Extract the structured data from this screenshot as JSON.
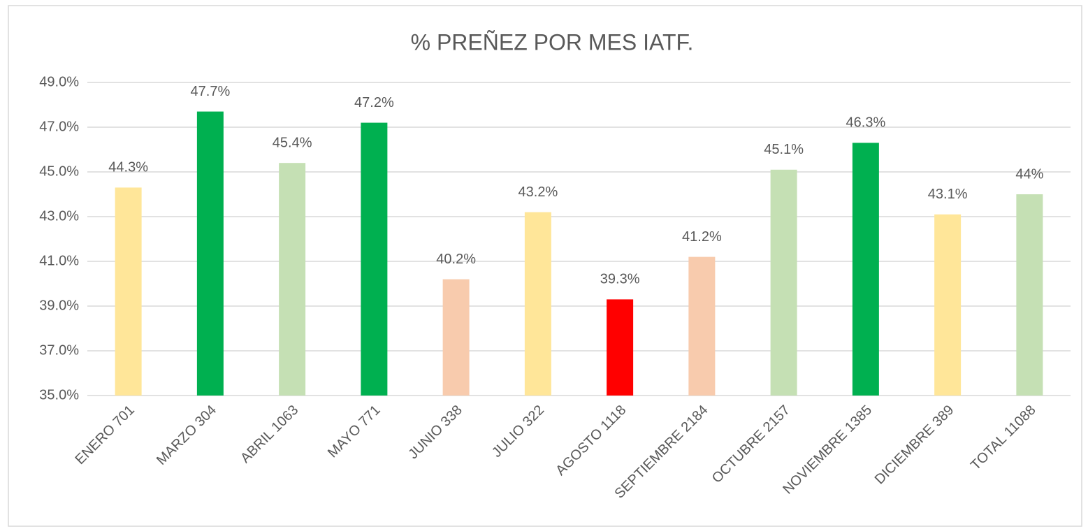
{
  "chart_data": {
    "type": "bar",
    "title": "% PREÑEZ POR MES IATF.",
    "categories": [
      "ENERO 701",
      "MARZO 304",
      "ABRIL 1063",
      "MAYO 771",
      "JUNIO 338",
      "JULIO 322",
      "AGOSTO 1118",
      "SEPTIEMBRE 2184",
      "OCTUBRE 2157",
      "NOVIEMBRE 1385",
      "DICIEMBRE 389",
      "TOTAL 11088"
    ],
    "values": [
      44.3,
      47.7,
      45.4,
      47.2,
      40.2,
      43.2,
      39.3,
      41.2,
      45.1,
      46.3,
      43.1,
      44
    ],
    "value_labels": [
      "44.3%",
      "47.7%",
      "45.4%",
      "47.2%",
      "40.2%",
      "43.2%",
      "39.3%",
      "41.2%",
      "45.1%",
      "46.3%",
      "43.1%",
      "44%"
    ],
    "colors": [
      "#FFE699",
      "#00B050",
      "#C5E0B4",
      "#00B050",
      "#F8CBAD",
      "#FFE699",
      "#FF0000",
      "#F8CBAD",
      "#C5E0B4",
      "#00B050",
      "#FFE699",
      "#C5E0B4"
    ],
    "ylim": [
      35,
      49
    ],
    "yticks": [
      {
        "value": 35,
        "label": "35.0%"
      },
      {
        "value": 37,
        "label": "37.0%"
      },
      {
        "value": 39,
        "label": "39.0%"
      },
      {
        "value": 41,
        "label": "41.0%"
      },
      {
        "value": 43,
        "label": "43.0%"
      },
      {
        "value": 45,
        "label": "45.0%"
      },
      {
        "value": 47,
        "label": "47.0%"
      },
      {
        "value": 49,
        "label": "49.0%"
      }
    ],
    "grid": true
  }
}
